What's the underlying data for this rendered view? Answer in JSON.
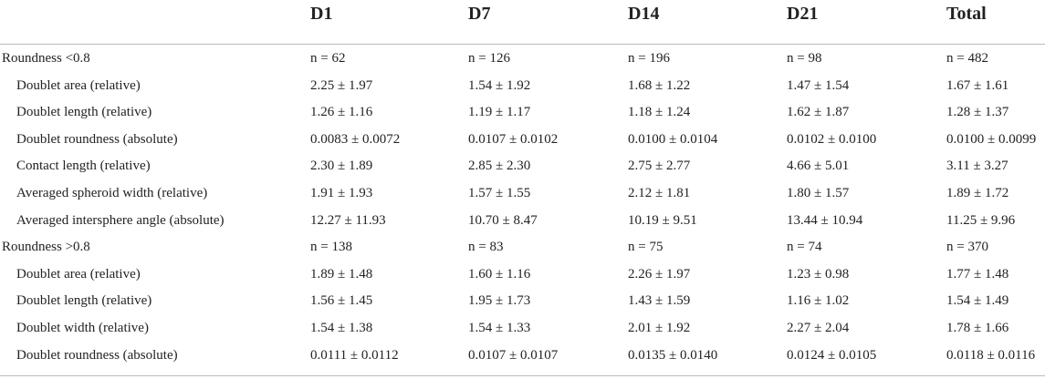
{
  "table": {
    "header": [
      "D1",
      "D7",
      "D14",
      "D21",
      "Total"
    ],
    "groups": [
      {
        "label": "Roundness <0.8",
        "cells": [
          "n = 62",
          "n = 126",
          "n = 196",
          "n = 98",
          "n = 482"
        ],
        "rows": [
          {
            "label": "Doublet area (relative)",
            "cells": [
              "2.25 ± 1.97",
              "1.54 ± 1.92",
              "1.68 ± 1.22",
              "1.47 ± 1.54",
              "1.67 ± 1.61"
            ]
          },
          {
            "label": "Doublet length (relative)",
            "cells": [
              "1.26 ± 1.16",
              "1.19 ± 1.17",
              "1.18 ± 1.24",
              "1.62 ± 1.87",
              "1.28 ± 1.37"
            ]
          },
          {
            "label": "Doublet roundness (absolute)",
            "cells": [
              "0.0083 ± 0.0072",
              "0.0107 ± 0.0102",
              "0.0100 ± 0.0104",
              "0.0102 ± 0.0100",
              "0.0100 ± 0.0099"
            ]
          },
          {
            "label": "Contact length (relative)",
            "cells": [
              "2.30 ± 1.89",
              "2.85 ± 2.30",
              "2.75 ± 2.77",
              "4.66 ± 5.01",
              "3.11 ± 3.27"
            ]
          },
          {
            "label": "Averaged spheroid width (relative)",
            "cells": [
              "1.91 ± 1.93",
              "1.57 ± 1.55",
              "2.12 ± 1.81",
              "1.80 ± 1.57",
              "1.89 ± 1.72"
            ]
          },
          {
            "label": "Averaged intersphere angle (absolute)",
            "cells": [
              "12.27 ± 11.93",
              "10.70 ± 8.47",
              "10.19 ± 9.51",
              "13.44 ± 10.94",
              "11.25 ± 9.96"
            ]
          }
        ]
      },
      {
        "label": "Roundness >0.8",
        "cells": [
          "n = 138",
          "n = 83",
          "n = 75",
          "n = 74",
          "n = 370"
        ],
        "rows": [
          {
            "label": "Doublet area (relative)",
            "cells": [
              "1.89 ± 1.48",
              "1.60 ± 1.16",
              "2.26 ± 1.97",
              "1.23 ± 0.98",
              "1.77 ± 1.48"
            ]
          },
          {
            "label": "Doublet length (relative)",
            "cells": [
              "1.56 ± 1.45",
              "1.95 ± 1.73",
              "1.43 ± 1.59",
              "1.16 ± 1.02",
              "1.54 ± 1.49"
            ]
          },
          {
            "label": "Doublet width (relative)",
            "cells": [
              "1.54 ± 1.38",
              "1.54 ± 1.33",
              "2.01 ± 1.92",
              "2.27 ± 2.04",
              "1.78 ± 1.66"
            ]
          },
          {
            "label": "Doublet roundness (absolute)",
            "cells": [
              "0.0111 ± 0.0112",
              "0.0107 ± 0.0107",
              "0.0135 ± 0.0140",
              "0.0124 ± 0.0105",
              "0.0118 ± 0.0116"
            ]
          }
        ]
      }
    ]
  }
}
